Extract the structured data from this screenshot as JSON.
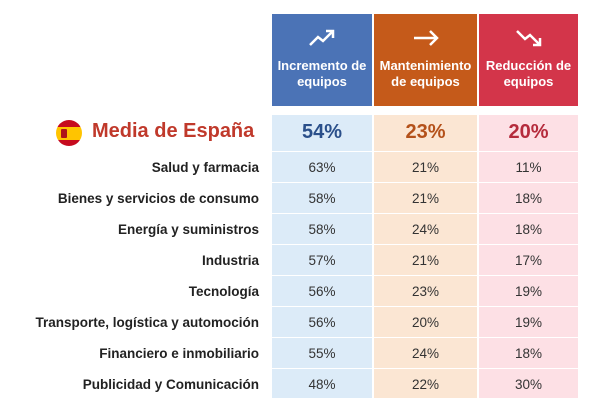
{
  "headers": [
    {
      "icon": "trend-up-icon",
      "label": "Incremento de\nequipos"
    },
    {
      "icon": "arrow-right-icon",
      "label": "Mantenimiento\nde equipos"
    },
    {
      "icon": "trend-down-icon",
      "label": "Reducción de\nequipos"
    }
  ],
  "average": {
    "label": "Media de España",
    "values": [
      "54%",
      "23%",
      "20%"
    ]
  },
  "rows": [
    {
      "label": "Salud y farmacia",
      "values": [
        "63%",
        "21%",
        "11%"
      ]
    },
    {
      "label": "Bienes y servicios de consumo",
      "values": [
        "58%",
        "21%",
        "18%"
      ]
    },
    {
      "label": "Energía y suministros",
      "values": [
        "58%",
        "24%",
        "18%"
      ]
    },
    {
      "label": "Industria",
      "values": [
        "57%",
        "21%",
        "17%"
      ]
    },
    {
      "label": "Tecnología",
      "values": [
        "56%",
        "23%",
        "19%"
      ]
    },
    {
      "label": "Transporte, logística y automoción",
      "values": [
        "56%",
        "20%",
        "19%"
      ]
    },
    {
      "label": "Financiero e inmobiliario",
      "values": [
        "55%",
        "24%",
        "18%"
      ]
    },
    {
      "label": "Publicidad y Comunicación",
      "values": [
        "48%",
        "22%",
        "30%"
      ]
    }
  ],
  "colors": {
    "increase": "#4b73b6",
    "maintain": "#c55a1a",
    "reduce": "#d3354a",
    "title": "#c0392b"
  }
}
